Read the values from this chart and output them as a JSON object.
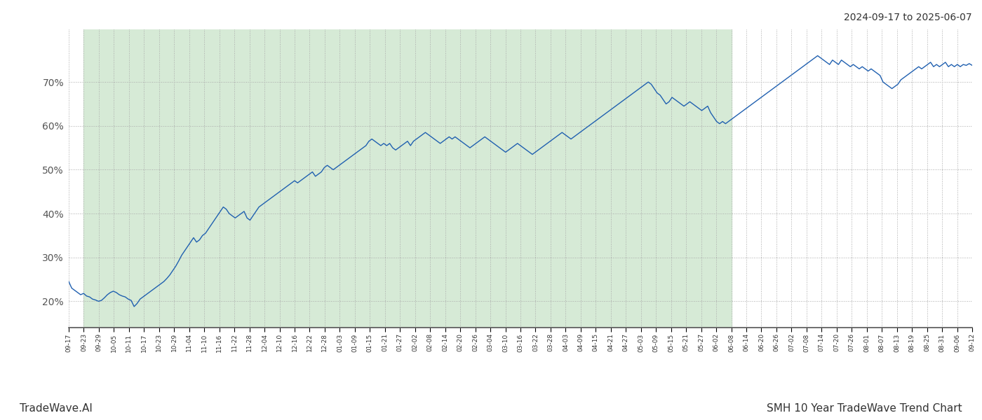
{
  "title_top_right": "2024-09-17 to 2025-06-07",
  "title_bottom_left": "TradeWave.AI",
  "title_bottom_right": "SMH 10 Year TradeWave Trend Chart",
  "background_color": "#ffffff",
  "plot_bg_color": "#ffffff",
  "shaded_region_color": "#d6ead6",
  "line_color": "#2060b0",
  "line_width": 1.0,
  "y_ticks": [
    20,
    30,
    40,
    50,
    60,
    70
  ],
  "y_min": 14,
  "y_max": 82,
  "grid_color": "#aaaaaa",
  "x_labels": [
    "09-17",
    "09-23",
    "09-29",
    "10-05",
    "10-11",
    "10-17",
    "10-23",
    "10-29",
    "11-04",
    "11-10",
    "11-16",
    "11-22",
    "11-28",
    "12-04",
    "12-10",
    "12-16",
    "12-22",
    "12-28",
    "01-03",
    "01-09",
    "01-15",
    "01-21",
    "01-27",
    "02-02",
    "02-08",
    "02-14",
    "02-20",
    "02-26",
    "03-04",
    "03-10",
    "03-16",
    "03-22",
    "03-28",
    "04-03",
    "04-09",
    "04-15",
    "04-21",
    "04-27",
    "05-03",
    "05-09",
    "05-15",
    "05-21",
    "05-27",
    "06-02",
    "06-08",
    "06-14",
    "06-20",
    "06-26",
    "07-02",
    "07-08",
    "07-14",
    "07-20",
    "07-26",
    "08-01",
    "08-07",
    "08-13",
    "08-19",
    "08-25",
    "08-31",
    "09-06",
    "09-12"
  ],
  "shaded_x_start_label": "09-23",
  "shaded_x_end_label": "06-08",
  "y_values": [
    24.5,
    23.0,
    22.5,
    22.0,
    21.5,
    21.8,
    21.2,
    21.0,
    20.5,
    20.3,
    20.0,
    20.2,
    20.8,
    21.5,
    22.0,
    22.3,
    22.0,
    21.5,
    21.2,
    21.0,
    20.5,
    20.2,
    18.8,
    19.5,
    20.5,
    21.0,
    21.5,
    22.0,
    22.5,
    23.0,
    23.5,
    24.0,
    24.5,
    25.2,
    26.0,
    27.0,
    28.0,
    29.2,
    30.5,
    31.5,
    32.5,
    33.5,
    34.5,
    33.5,
    34.0,
    35.0,
    35.5,
    36.5,
    37.5,
    38.5,
    39.5,
    40.5,
    41.5,
    41.0,
    40.0,
    39.5,
    39.0,
    39.5,
    40.0,
    40.5,
    39.0,
    38.5,
    39.5,
    40.5,
    41.5,
    42.0,
    42.5,
    43.0,
    43.5,
    44.0,
    44.5,
    45.0,
    45.5,
    46.0,
    46.5,
    47.0,
    47.5,
    47.0,
    47.5,
    48.0,
    48.5,
    49.0,
    49.5,
    48.5,
    49.0,
    49.5,
    50.5,
    51.0,
    50.5,
    50.0,
    50.5,
    51.0,
    51.5,
    52.0,
    52.5,
    53.0,
    53.5,
    54.0,
    54.5,
    55.0,
    55.5,
    56.5,
    57.0,
    56.5,
    56.0,
    55.5,
    56.0,
    55.5,
    56.0,
    55.0,
    54.5,
    55.0,
    55.5,
    56.0,
    56.5,
    55.5,
    56.5,
    57.0,
    57.5,
    58.0,
    58.5,
    58.0,
    57.5,
    57.0,
    56.5,
    56.0,
    56.5,
    57.0,
    57.5,
    57.0,
    57.5,
    57.0,
    56.5,
    56.0,
    55.5,
    55.0,
    55.5,
    56.0,
    56.5,
    57.0,
    57.5,
    57.0,
    56.5,
    56.0,
    55.5,
    55.0,
    54.5,
    54.0,
    54.5,
    55.0,
    55.5,
    56.0,
    55.5,
    55.0,
    54.5,
    54.0,
    53.5,
    54.0,
    54.5,
    55.0,
    55.5,
    56.0,
    56.5,
    57.0,
    57.5,
    58.0,
    58.5,
    58.0,
    57.5,
    57.0,
    57.5,
    58.0,
    58.5,
    59.0,
    59.5,
    60.0,
    60.5,
    61.0,
    61.5,
    62.0,
    62.5,
    63.0,
    63.5,
    64.0,
    64.5,
    65.0,
    65.5,
    66.0,
    66.5,
    67.0,
    67.5,
    68.0,
    68.5,
    69.0,
    69.5,
    70.0,
    69.5,
    68.5,
    67.5,
    67.0,
    66.0,
    65.0,
    65.5,
    66.5,
    66.0,
    65.5,
    65.0,
    64.5,
    65.0,
    65.5,
    65.0,
    64.5,
    64.0,
    63.5,
    64.0,
    64.5,
    63.0,
    62.0,
    61.0,
    60.5,
    61.0,
    60.5,
    61.0,
    61.5,
    62.0,
    62.5,
    63.0,
    63.5,
    64.0,
    64.5,
    65.0,
    65.5,
    66.0,
    66.5,
    67.0,
    67.5,
    68.0,
    68.5,
    69.0,
    69.5,
    70.0,
    70.5,
    71.0,
    71.5,
    72.0,
    72.5,
    73.0,
    73.5,
    74.0,
    74.5,
    75.0,
    75.5,
    76.0,
    75.5,
    75.0,
    74.5,
    74.0,
    75.0,
    74.5,
    74.0,
    75.0,
    74.5,
    74.0,
    73.5,
    74.0,
    73.5,
    73.0,
    73.5,
    73.0,
    72.5,
    73.0,
    72.5,
    72.0,
    71.5,
    70.0,
    69.5,
    69.0,
    68.5,
    69.0,
    69.5,
    70.5,
    71.0,
    71.5,
    72.0,
    72.5,
    73.0,
    73.5,
    73.0,
    73.5,
    74.0,
    74.5,
    73.5,
    74.0,
    73.5,
    74.0,
    74.5,
    73.5,
    74.0,
    73.5,
    74.0,
    73.5,
    74.0,
    73.8,
    74.2,
    73.8
  ]
}
